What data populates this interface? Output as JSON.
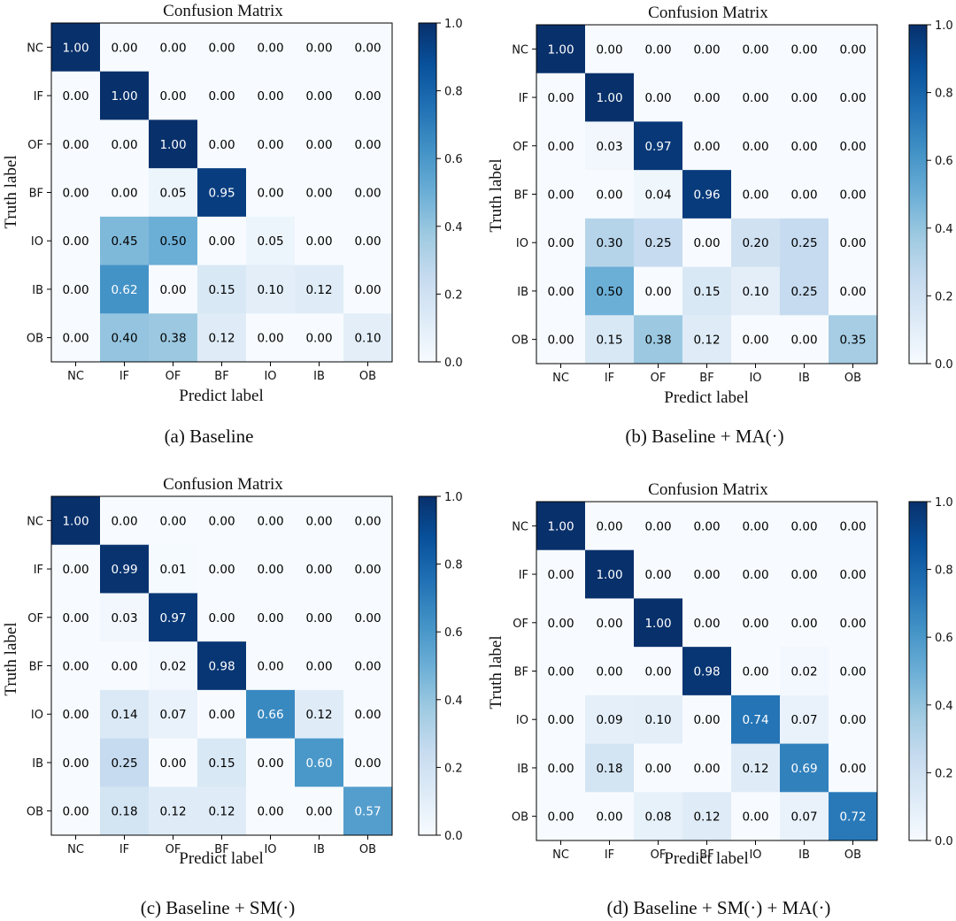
{
  "chart_data": [
    {
      "type": "heatmap",
      "title": "Confusion Matrix",
      "caption": "(a) Baseline",
      "xlabel": "Predict label",
      "ylabel": "Truth label",
      "x_categories": [
        "NC",
        "IF",
        "OF",
        "BF",
        "IO",
        "IB",
        "OB"
      ],
      "y_categories": [
        "NC",
        "IF",
        "OF",
        "BF",
        "IO",
        "IB",
        "OB"
      ],
      "values": [
        [
          1.0,
          0.0,
          0.0,
          0.0,
          0.0,
          0.0,
          0.0
        ],
        [
          0.0,
          1.0,
          0.0,
          0.0,
          0.0,
          0.0,
          0.0
        ],
        [
          0.0,
          0.0,
          1.0,
          0.0,
          0.0,
          0.0,
          0.0
        ],
        [
          0.0,
          0.0,
          0.05,
          0.95,
          0.0,
          0.0,
          0.0
        ],
        [
          0.0,
          0.45,
          0.5,
          0.0,
          0.05,
          0.0,
          0.0
        ],
        [
          0.0,
          0.62,
          0.0,
          0.15,
          0.1,
          0.12,
          0.0
        ],
        [
          0.0,
          0.4,
          0.38,
          0.12,
          0.0,
          0.0,
          0.1
        ]
      ],
      "cell_labels": [
        [
          "1.00",
          "0.00",
          "0.00",
          "0.00",
          "0.00",
          "0.00",
          "0.00"
        ],
        [
          "0.00",
          "1.00",
          "0.00",
          "0.00",
          "0.00",
          "0.00",
          "0.00"
        ],
        [
          "0.00",
          "0.00",
          "1.00",
          "0.00",
          "0.00",
          "0.00",
          "0.00"
        ],
        [
          "0.00",
          "0.00",
          "0.05",
          "0.95",
          "0.00",
          "0.00",
          "0.00"
        ],
        [
          "0.00",
          "0.45",
          "0.50",
          "0.00",
          "0.05",
          "0.00",
          "0.00"
        ],
        [
          "0.00",
          "0.62",
          "0.00",
          "0.15",
          "0.10",
          "0.12",
          "0.00"
        ],
        [
          "0.00",
          "0.40",
          "0.38",
          "0.12",
          "0.00",
          "0.00",
          "0.10"
        ]
      ],
      "colorbar": {
        "range": [
          0.0,
          1.0
        ],
        "ticks": [
          "0.0",
          "0.2",
          "0.4",
          "0.6",
          "0.8",
          "1.0"
        ],
        "colormap": "Blues"
      }
    },
    {
      "type": "heatmap",
      "title": "Confusion Matrix",
      "caption": "(b) Baseline + MA(·)",
      "xlabel": "Predict label",
      "ylabel": "Truth label",
      "x_categories": [
        "NC",
        "IF",
        "OF",
        "BF",
        "IO",
        "IB",
        "OB"
      ],
      "y_categories": [
        "NC",
        "IF",
        "OF",
        "BF",
        "IO",
        "IB",
        "OB"
      ],
      "values": [
        [
          1.0,
          0.0,
          0.0,
          0.0,
          0.0,
          0.0,
          0.0
        ],
        [
          0.0,
          1.0,
          0.0,
          0.0,
          0.0,
          0.0,
          0.0
        ],
        [
          0.0,
          0.03,
          0.97,
          0.0,
          0.0,
          0.0,
          0.0
        ],
        [
          0.0,
          0.0,
          0.04,
          0.96,
          0.0,
          0.0,
          0.0
        ],
        [
          0.0,
          0.3,
          0.25,
          0.0,
          0.2,
          0.25,
          0.0
        ],
        [
          0.0,
          0.5,
          0.0,
          0.15,
          0.1,
          0.25,
          0.0
        ],
        [
          0.0,
          0.15,
          0.38,
          0.12,
          0.0,
          0.0,
          0.35
        ]
      ],
      "cell_labels": [
        [
          "1.00",
          "0.00",
          "0.00",
          "0.00",
          "0.00",
          "0.00",
          "0.00"
        ],
        [
          "0.00",
          "1.00",
          "0.00",
          "0.00",
          "0.00",
          "0.00",
          "0.00"
        ],
        [
          "0.00",
          "0.03",
          "0.97",
          "0.00",
          "0.00",
          "0.00",
          "0.00"
        ],
        [
          "0.00",
          "0.00",
          "0.04",
          "0.96",
          "0.00",
          "0.00",
          "0.00"
        ],
        [
          "0.00",
          "0.30",
          "0.25",
          "0.00",
          "0.20",
          "0.25",
          "0.00"
        ],
        [
          "0.00",
          "0.50",
          "0.00",
          "0.15",
          "0.10",
          "0.25",
          "0.00"
        ],
        [
          "0.00",
          "0.15",
          "0.38",
          "0.12",
          "0.00",
          "0.00",
          "0.35"
        ]
      ],
      "colorbar": {
        "range": [
          0.0,
          1.0
        ],
        "ticks": [
          "0.0",
          "0.2",
          "0.4",
          "0.6",
          "0.8",
          "1.0"
        ],
        "colormap": "Blues"
      }
    },
    {
      "type": "heatmap",
      "title": "Confusion Matrix",
      "caption": "(c) Baseline + SM(·)",
      "xlabel": "Predict label",
      "ylabel": "Truth label",
      "x_categories": [
        "NC",
        "IF",
        "OF",
        "BF",
        "IO",
        "IB",
        "OB"
      ],
      "y_categories": [
        "NC",
        "IF",
        "OF",
        "BF",
        "IO",
        "IB",
        "OB"
      ],
      "values": [
        [
          1.0,
          0.0,
          0.0,
          0.0,
          0.0,
          0.0,
          0.0
        ],
        [
          0.0,
          0.99,
          0.01,
          0.0,
          0.0,
          0.0,
          0.0
        ],
        [
          0.0,
          0.03,
          0.97,
          0.0,
          0.0,
          0.0,
          0.0
        ],
        [
          0.0,
          0.0,
          0.02,
          0.98,
          0.0,
          0.0,
          0.0
        ],
        [
          0.0,
          0.14,
          0.07,
          0.0,
          0.66,
          0.12,
          0.0
        ],
        [
          0.0,
          0.25,
          0.0,
          0.15,
          0.0,
          0.6,
          0.0
        ],
        [
          0.0,
          0.18,
          0.12,
          0.12,
          0.0,
          0.0,
          0.57
        ]
      ],
      "cell_labels": [
        [
          "1.00",
          "0.00",
          "0.00",
          "0.00",
          "0.00",
          "0.00",
          "0.00"
        ],
        [
          "0.00",
          "0.99",
          "0.01",
          "0.00",
          "0.00",
          "0.00",
          "0.00"
        ],
        [
          "0.00",
          "0.03",
          "0.97",
          "0.00",
          "0.00",
          "0.00",
          "0.00"
        ],
        [
          "0.00",
          "0.00",
          "0.02",
          "0.98",
          "0.00",
          "0.00",
          "0.00"
        ],
        [
          "0.00",
          "0.14",
          "0.07",
          "0.00",
          "0.66",
          "0.12",
          "0.00"
        ],
        [
          "0.00",
          "0.25",
          "0.00",
          "0.15",
          "0.00",
          "0.60",
          "0.00"
        ],
        [
          "0.00",
          "0.18",
          "0.12",
          "0.12",
          "0.00",
          "0.00",
          "0.57"
        ]
      ],
      "colorbar": {
        "range": [
          0.0,
          1.0
        ],
        "ticks": [
          "0.0",
          "0.2",
          "0.4",
          "0.6",
          "0.8",
          "1.0"
        ],
        "colormap": "Blues"
      }
    },
    {
      "type": "heatmap",
      "title": "Confusion Matrix",
      "caption": "(d) Baseline + SM(·) + MA(·)",
      "xlabel": "Predict label",
      "ylabel": "Truth label",
      "x_categories": [
        "NC",
        "IF",
        "OF",
        "BF",
        "IO",
        "IB",
        "OB"
      ],
      "y_categories": [
        "NC",
        "IF",
        "OF",
        "BF",
        "IO",
        "IB",
        "OB"
      ],
      "values": [
        [
          1.0,
          0.0,
          0.0,
          0.0,
          0.0,
          0.0,
          0.0
        ],
        [
          0.0,
          1.0,
          0.0,
          0.0,
          0.0,
          0.0,
          0.0
        ],
        [
          0.0,
          0.0,
          1.0,
          0.0,
          0.0,
          0.0,
          0.0
        ],
        [
          0.0,
          0.0,
          0.0,
          0.98,
          0.0,
          0.02,
          0.0
        ],
        [
          0.0,
          0.09,
          0.1,
          0.0,
          0.74,
          0.07,
          0.0
        ],
        [
          0.0,
          0.18,
          0.0,
          0.0,
          0.12,
          0.69,
          0.0
        ],
        [
          0.0,
          0.0,
          0.08,
          0.12,
          0.0,
          0.07,
          0.72
        ]
      ],
      "cell_labels": [
        [
          "1.00",
          "0.00",
          "0.00",
          "0.00",
          "0.00",
          "0.00",
          "0.00"
        ],
        [
          "0.00",
          "1.00",
          "0.00",
          "0.00",
          "0.00",
          "0.00",
          "0.00"
        ],
        [
          "0.00",
          "0.00",
          "1.00",
          "0.00",
          "0.00",
          "0.00",
          "0.00"
        ],
        [
          "0.00",
          "0.00",
          "0.00",
          "0.98",
          "0.00",
          "0.02",
          "0.00"
        ],
        [
          "0.00",
          "0.09",
          "0.10",
          "0.00",
          "0.74",
          "0.07",
          "0.00"
        ],
        [
          "0.00",
          "0.18",
          "0.00",
          "0.00",
          "0.12",
          "0.69",
          "0.00"
        ],
        [
          "0.00",
          "0.00",
          "0.08",
          "0.12",
          "0.00",
          "0.07",
          "0.72"
        ]
      ],
      "colorbar": {
        "range": [
          0.0,
          1.0
        ],
        "ticks": [
          "0.0",
          "0.2",
          "0.4",
          "0.6",
          "0.8",
          "1.0"
        ],
        "colormap": "Blues"
      }
    }
  ]
}
